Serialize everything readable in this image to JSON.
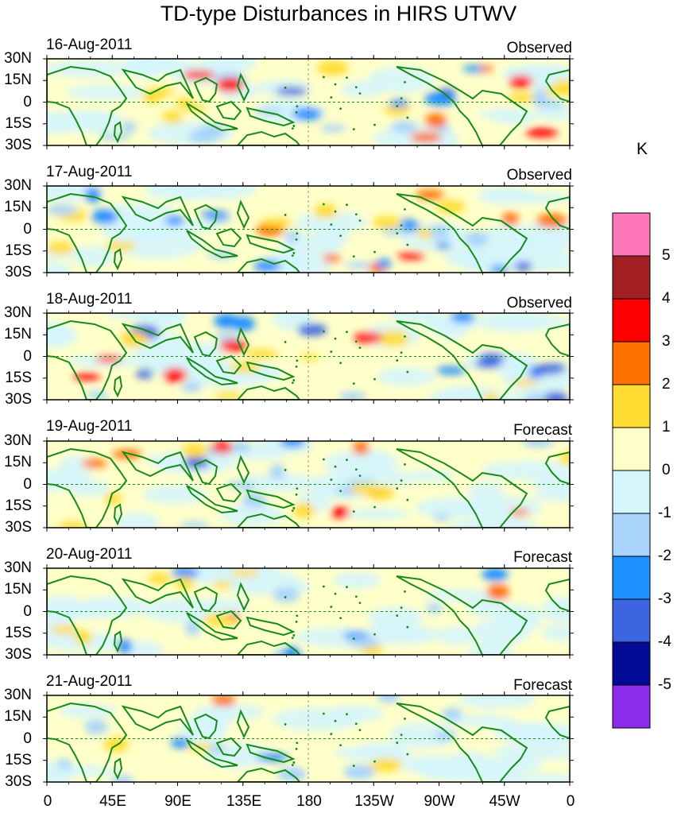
{
  "title": "TD-type Disturbances in HIRS UTWV",
  "panels": [
    {
      "date": "16-Aug-2011",
      "kind": "Observed"
    },
    {
      "date": "17-Aug-2011",
      "kind": "Observed"
    },
    {
      "date": "18-Aug-2011",
      "kind": "Observed"
    },
    {
      "date": "19-Aug-2011",
      "kind": "Forecast"
    },
    {
      "date": "20-Aug-2011",
      "kind": "Forecast"
    },
    {
      "date": "21-Aug-2011",
      "kind": "Forecast"
    }
  ],
  "lat_labels": [
    "30N",
    "15N",
    "0",
    "15S",
    "30S"
  ],
  "lon_labels": [
    "0",
    "45E",
    "90E",
    "135E",
    "180",
    "135W",
    "90W",
    "45W",
    "0"
  ],
  "colorbar": {
    "unit": "K",
    "labels": [
      "5",
      "4",
      "3",
      "2",
      "1",
      "0",
      "-1",
      "-2",
      "-3",
      "-4",
      "-5"
    ],
    "colors": [
      "#ff77bb",
      "#a21f23",
      "#fe0000",
      "#ff7200",
      "#ffdd33",
      "#ffffc9",
      "#d5f5fc",
      "#a8d4fb",
      "#1e90ff",
      "#3c66e1",
      "#020a96",
      "#8a2ce9"
    ]
  },
  "colors": {
    "land": "#178a1a",
    "zero_line": "#178a1a"
  }
}
